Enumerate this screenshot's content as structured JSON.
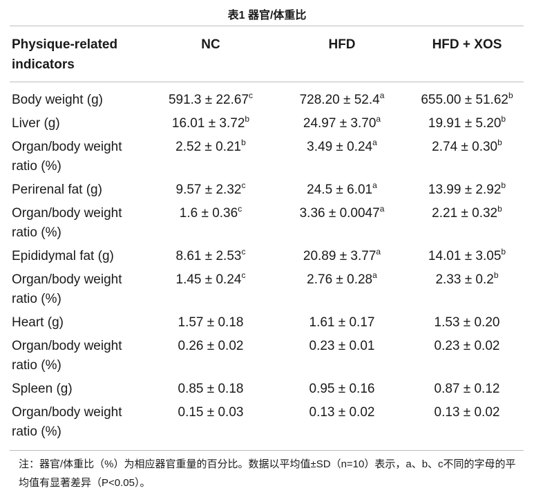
{
  "caption": "表1 器官/体重比",
  "headers": [
    "Physique-related indicators",
    "NC",
    "HFD",
    "HFD + XOS"
  ],
  "rows": [
    {
      "label": "Body weight (g)",
      "cells": [
        {
          "v": "591.3 ± 22.67",
          "s": "c"
        },
        {
          "v": "728.20 ± 52.4",
          "s": "a"
        },
        {
          "v": "655.00 ± 51.62",
          "s": "b"
        }
      ]
    },
    {
      "label": "Liver (g)",
      "cells": [
        {
          "v": "16.01 ± 3.72",
          "s": "b"
        },
        {
          "v": "24.97 ± 3.70",
          "s": "a"
        },
        {
          "v": "19.91 ± 5.20",
          "s": "b"
        }
      ]
    },
    {
      "label": "Organ/body weight ratio (%)",
      "cells": [
        {
          "v": "2.52 ± 0.21",
          "s": "b"
        },
        {
          "v": "3.49 ± 0.24",
          "s": "a"
        },
        {
          "v": "2.74 ± 0.30",
          "s": "b"
        }
      ]
    },
    {
      "label": "Perirenal fat (g)",
      "cells": [
        {
          "v": "9.57 ± 2.32",
          "s": "c"
        },
        {
          "v": "24.5 ± 6.01",
          "s": "a"
        },
        {
          "v": "13.99 ± 2.92",
          "s": "b"
        }
      ]
    },
    {
      "label": "Organ/body weight ratio (%)",
      "cells": [
        {
          "v": "1.6 ± 0.36",
          "s": "c"
        },
        {
          "v": "3.36 ± 0.0047",
          "s": "a"
        },
        {
          "v": "2.21 ± 0.32",
          "s": "b"
        }
      ]
    },
    {
      "label": "Epididymal fat (g)",
      "cells": [
        {
          "v": "8.61 ± 2.53",
          "s": "c"
        },
        {
          "v": "20.89 ± 3.77",
          "s": "a"
        },
        {
          "v": "14.01 ± 3.05",
          "s": "b"
        }
      ]
    },
    {
      "label": "Organ/body weight ratio (%)",
      "cells": [
        {
          "v": "1.45 ± 0.24",
          "s": "c"
        },
        {
          "v": "2.76 ± 0.28",
          "s": "a"
        },
        {
          "v": "2.33 ± 0.2",
          "s": "b"
        }
      ]
    },
    {
      "label": "Heart (g)",
      "cells": [
        {
          "v": "1.57 ± 0.18",
          "s": ""
        },
        {
          "v": "1.61 ± 0.17",
          "s": ""
        },
        {
          "v": "1.53 ± 0.20",
          "s": ""
        }
      ]
    },
    {
      "label": "Organ/body weight ratio (%)",
      "cells": [
        {
          "v": "0.26 ± 0.02",
          "s": ""
        },
        {
          "v": "0.23 ± 0.01",
          "s": ""
        },
        {
          "v": "0.23 ± 0.02",
          "s": ""
        }
      ]
    },
    {
      "label": "Spleen (g)",
      "cells": [
        {
          "v": "0.85 ± 0.18",
          "s": ""
        },
        {
          "v": "0.95 ± 0.16",
          "s": ""
        },
        {
          "v": "0.87 ± 0.12",
          "s": ""
        }
      ]
    },
    {
      "label": "Organ/body weight ratio (%)",
      "cells": [
        {
          "v": "0.15 ± 0.03",
          "s": ""
        },
        {
          "v": "0.13 ± 0.02",
          "s": ""
        },
        {
          "v": "0.13 ± 0.02",
          "s": ""
        }
      ]
    }
  ],
  "footnote": "注：器官/体重比（%）为相应器官重量的百分比。数据以平均值±SD（n=10）表示，a、b、c不同的字母的平均值有显著差异（P<0.05）。"
}
